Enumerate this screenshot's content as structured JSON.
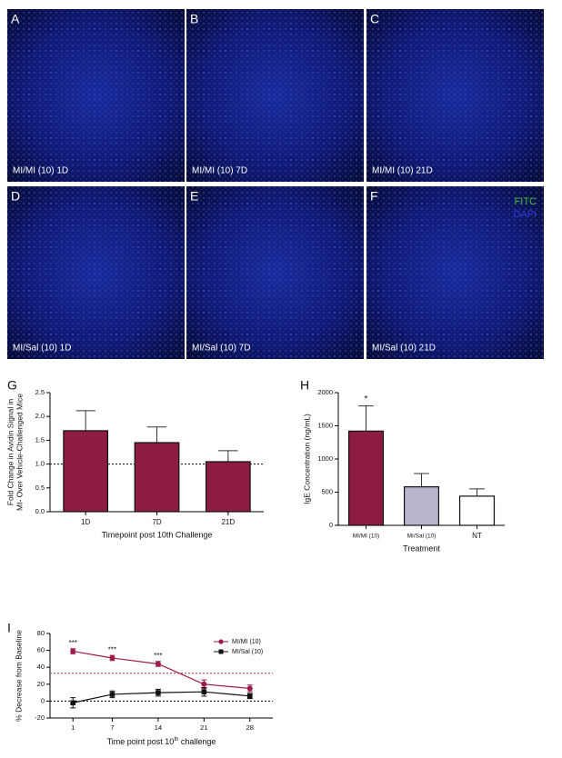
{
  "micrographs": {
    "panels": [
      {
        "letter": "A",
        "caption": "MI/MI (10)  1D"
      },
      {
        "letter": "B",
        "caption": "MI/MI (10)  7D"
      },
      {
        "letter": "C",
        "caption": "MI/MI (10)  21D"
      },
      {
        "letter": "D",
        "caption": "MI/Sal (10) 1D"
      },
      {
        "letter": "E",
        "caption": "MI/Sal (10) 7D"
      },
      {
        "letter": "F",
        "caption": "MI/Sal (10) 21D"
      }
    ],
    "legend": [
      {
        "name": "FITC",
        "color": "#3fbf3f"
      },
      {
        "name": "DAPI",
        "color": "#2a3dd6"
      }
    ]
  },
  "chart_data": [
    {
      "type": "bar",
      "panel": "G",
      "y_label": [
        "Fold Change in Avidin Signal in",
        "MI- Over Vehicle-Challenged Mice"
      ],
      "x_label": "Timepoint post 10th Challenge",
      "categories": [
        "1D",
        "7D",
        "21D"
      ],
      "values": [
        1.7,
        1.45,
        1.05
      ],
      "errors": [
        0.42,
        0.33,
        0.23
      ],
      "colors": [
        "#8c1c41",
        "#8c1c41",
        "#8c1c41"
      ],
      "ylim": [
        0,
        2.5
      ],
      "yticks": [
        {
          "value": 0,
          "label": "0.0"
        },
        0.5,
        {
          "value": 1,
          "label": "1.0"
        },
        1.5,
        {
          "value": 2,
          "label": "2.0"
        },
        2.5
      ],
      "hlines": [
        {
          "value": 1,
          "color": "#000000"
        }
      ]
    },
    {
      "type": "bar",
      "panel": "H",
      "y_label": [
        "IgE Concentration (ng/mL)"
      ],
      "x_label": "Treatment",
      "categories": [
        "MI/MI (10)",
        "MI/Sal (10)",
        "NT"
      ],
      "values": [
        1420,
        580,
        440
      ],
      "errors": [
        380,
        200,
        110
      ],
      "colors": [
        "#8c1c41",
        "#bab5cd",
        "#ffffff"
      ],
      "significance": [
        "*",
        null,
        null
      ],
      "ylim": [
        0,
        2000
      ],
      "yticks": [
        0,
        500,
        1000,
        1500,
        2000
      ]
    },
    {
      "type": "line",
      "panel": "I",
      "y_label": [
        "% Decrease from Baseline"
      ],
      "x_label": {
        "text": "Time point post 10",
        "sup": "th",
        "tail": " challenge"
      },
      "x": [
        1,
        7,
        14,
        21,
        28
      ],
      "series": [
        {
          "name": "MI/MI (10)",
          "color": "#9b1b4a",
          "marker": "circle",
          "values": [
            59,
            51,
            44,
            20,
            15
          ],
          "errors": [
            3,
            3,
            3,
            5,
            4
          ],
          "significance": [
            "***",
            "***",
            "***",
            null,
            null
          ]
        },
        {
          "name": "MI/Sal (10)",
          "color": "#111111",
          "marker": "square",
          "values": [
            -2,
            8,
            10,
            11,
            6
          ],
          "errors": [
            6,
            4,
            4,
            5,
            3
          ]
        }
      ],
      "xlim": [
        -2.5,
        31.5
      ],
      "xticks": [
        1,
        7,
        14,
        21,
        28
      ],
      "ylim": [
        -20,
        80
      ],
      "yticks": [
        -20,
        0,
        20,
        40,
        60,
        80
      ],
      "hlines": [
        {
          "value": 33,
          "color": "#a0282c"
        },
        {
          "value": 0,
          "color": "#000000"
        }
      ]
    }
  ]
}
